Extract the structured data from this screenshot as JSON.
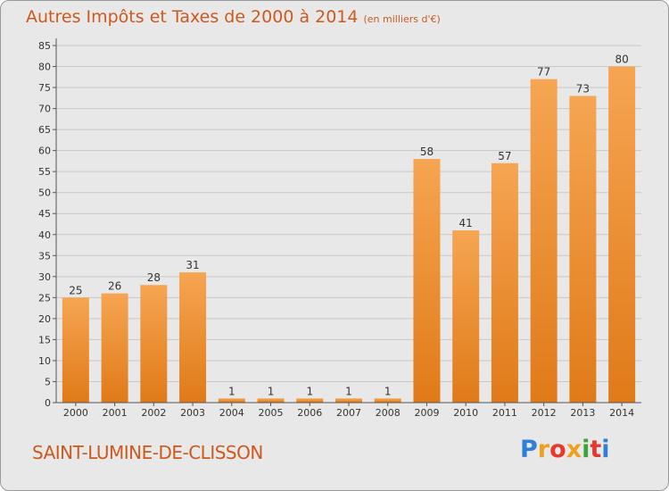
{
  "header": {
    "title": "Autres Impôts et Taxes de 2000 à 2014",
    "unit": "(en milliers d'€)"
  },
  "footer": {
    "commune": "SAINT-LUMINE-DE-CLISSON",
    "logo_letters": [
      "P",
      "r",
      "o",
      "x",
      "i",
      "t",
      "i"
    ],
    "logo_colors": [
      "#2e7fd6",
      "#f0a020",
      "#e8382c",
      "#f0a020",
      "#3aa63a",
      "#e8382c",
      "#2e7fd6"
    ]
  },
  "colors": {
    "bar": "#f0882a",
    "bar_light": "#f6a552",
    "title": "#cc5a1e",
    "grid": "#c8c8c8"
  },
  "chart_data": {
    "type": "bar",
    "categories": [
      "2000",
      "2001",
      "2002",
      "2003",
      "2004",
      "2005",
      "2006",
      "2007",
      "2008",
      "2009",
      "2010",
      "2011",
      "2012",
      "2013",
      "2014"
    ],
    "values": [
      25,
      26,
      28,
      31,
      1,
      1,
      1,
      1,
      1,
      58,
      41,
      57,
      77,
      73,
      80
    ],
    "data_labels": [
      "25",
      "26",
      "28",
      "31",
      "1",
      "1",
      "1",
      "1",
      "1",
      "58",
      "41",
      "57",
      "77",
      "73",
      "80"
    ],
    "yticks": [
      "0",
      "5",
      "10",
      "15",
      "20",
      "25",
      "30",
      "35",
      "40",
      "45",
      "50",
      "55",
      "60",
      "65",
      "70",
      "75",
      "80",
      "85"
    ],
    "ylim": [
      0,
      85
    ],
    "grid": true
  }
}
